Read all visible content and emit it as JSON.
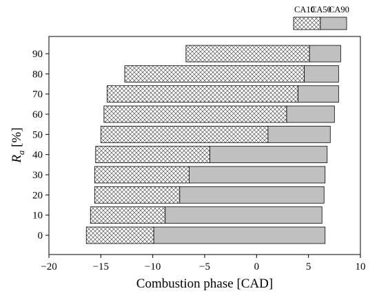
{
  "chart_data": {
    "type": "bar",
    "orientation": "horizontal",
    "categories": [
      "0",
      "10",
      "20",
      "30",
      "40",
      "50",
      "60",
      "70",
      "80",
      "90"
    ],
    "series": [
      {
        "name": "CA10",
        "values": [
          -16.4,
          -16.0,
          -15.6,
          -15.6,
          -15.5,
          -15.0,
          -14.7,
          -14.4,
          -12.7,
          -6.8
        ]
      },
      {
        "name": "CA50",
        "values": [
          -9.9,
          -8.8,
          -7.4,
          -6.5,
          -4.5,
          1.1,
          2.9,
          4.0,
          4.6,
          5.1
        ]
      },
      {
        "name": "CA90",
        "values": [
          6.6,
          6.3,
          6.5,
          6.6,
          6.8,
          7.1,
          7.5,
          7.9,
          7.9,
          8.1
        ]
      }
    ],
    "xlabel": "Combustion phase [CAD]",
    "ylabel_main": "R",
    "ylabel_sub": "a",
    "ylabel_unit": " [%]",
    "xlim": [
      -20,
      10
    ],
    "xticks": [
      "−20",
      "−15",
      "−10",
      "−5",
      "0",
      "5",
      "10"
    ],
    "xtick_values": [
      -20,
      -15,
      -10,
      -5,
      0,
      5,
      10
    ],
    "grid": false,
    "legend_position": "top-right, outside plot",
    "colors": {
      "hatched_fill": "#ffffff",
      "hatch_line": "#555555",
      "solid_fill": "#c0c0c0",
      "outline": "#000000"
    }
  }
}
